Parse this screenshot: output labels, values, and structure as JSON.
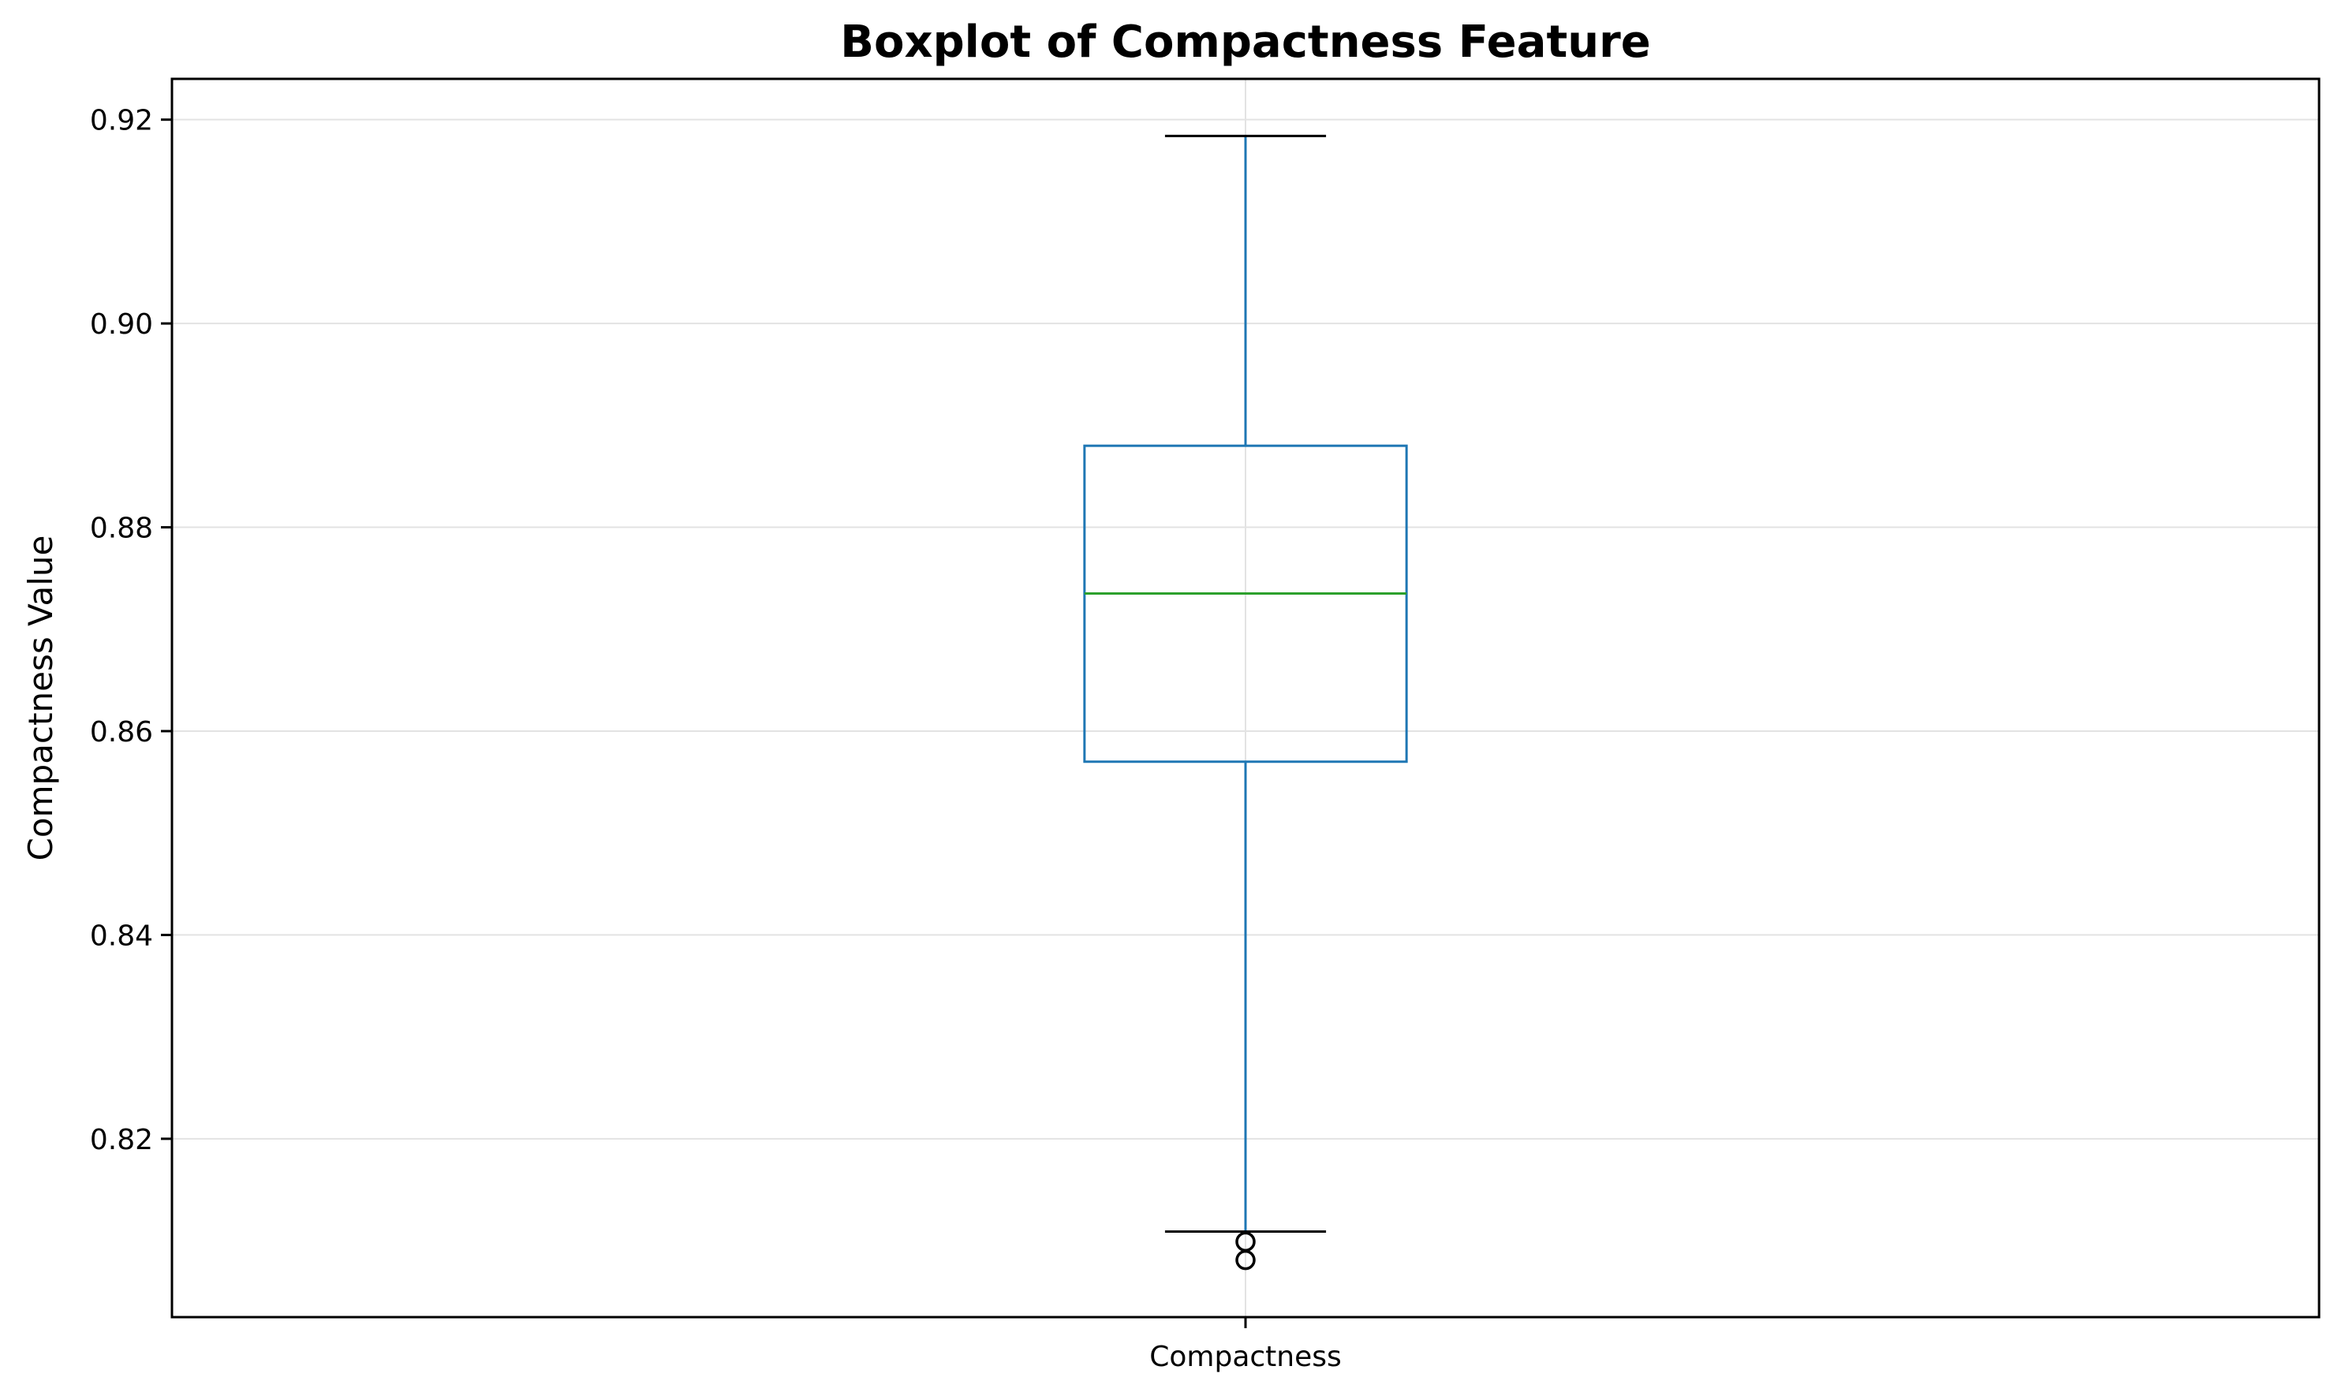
{
  "chart_data": {
    "type": "boxplot",
    "title": "Boxplot of Compactness Feature",
    "xlabel": "",
    "ylabel": "Compactness Value",
    "categories": [
      "Compactness"
    ],
    "ylim": [
      0.8025,
      0.924
    ],
    "yticks": [
      0.82,
      0.84,
      0.86,
      0.88,
      0.9,
      0.92
    ],
    "ytick_labels": [
      "0.82",
      "0.84",
      "0.86",
      "0.88",
      "0.90",
      "0.92"
    ],
    "grid": true,
    "boxes": [
      {
        "name": "Compactness",
        "whisker_low": 0.8109,
        "q1": 0.857,
        "median": 0.8735,
        "q3": 0.888,
        "whisker_high": 0.9184,
        "outliers": [
          0.8081,
          0.8099
        ]
      }
    ],
    "colors": {
      "box": "#1f77b4",
      "median": "#2ca02c",
      "caps": "#000000",
      "outliers": "#000000"
    }
  }
}
